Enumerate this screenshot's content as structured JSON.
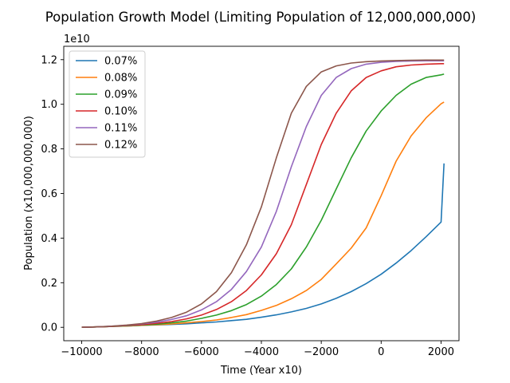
{
  "chart_data": {
    "type": "line",
    "title": "Population Growth Model (Limiting Population of 12,000,000,000)",
    "xlabel": "Time (Year x10)",
    "ylabel": "Population (x10,000,000,000)",
    "y_offset_label": "1e10",
    "xlim": [
      -10600,
      2600
    ],
    "ylim": [
      -0.06,
      1.26
    ],
    "x_ticks": [
      -10000,
      -8000,
      -6000,
      -4000,
      -2000,
      0,
      2000
    ],
    "x_tick_labels": [
      "−10000",
      "−8000",
      "−6000",
      "−4000",
      "−2000",
      "0",
      "2000"
    ],
    "y_ticks": [
      0.0,
      0.2,
      0.4,
      0.6,
      0.8,
      1.0,
      1.2
    ],
    "y_tick_labels": [
      "0.0",
      "0.2",
      "0.4",
      "0.6",
      "0.8",
      "1.0",
      "1.2"
    ],
    "grid": false,
    "legend_position": "top-left",
    "x": [
      -10000,
      -9500,
      -9000,
      -8500,
      -8000,
      -7500,
      -7000,
      -6500,
      -6000,
      -5500,
      -5000,
      -4500,
      -4000,
      -3500,
      -3000,
      -2500,
      -2000,
      -1500,
      -1000,
      -500,
      0,
      500,
      1000,
      1500,
      2000,
      2100
    ],
    "series": [
      {
        "name": "0.07%",
        "color": "#1f77b4",
        "values": [
          0.0,
          0.002,
          0.004,
          0.006,
          0.009,
          0.011,
          0.013,
          0.016,
          0.02,
          0.024,
          0.03,
          0.036,
          0.045,
          0.056,
          0.069,
          0.085,
          0.105,
          0.13,
          0.16,
          0.196,
          0.238,
          0.288,
          0.344,
          0.406,
          0.472,
          0.735
        ]
      },
      {
        "name": "0.08%",
        "color": "#ff7f0e",
        "values": [
          0.0,
          0.002,
          0.004,
          0.006,
          0.009,
          0.012,
          0.015,
          0.02,
          0.026,
          0.033,
          0.044,
          0.057,
          0.076,
          0.098,
          0.128,
          0.165,
          0.215,
          0.284,
          0.355,
          0.446,
          0.59,
          0.745,
          0.858,
          0.939,
          1.002,
          1.01
        ]
      },
      {
        "name": "0.09%",
        "color": "#2ca02c",
        "values": [
          0.0,
          0.002,
          0.004,
          0.007,
          0.01,
          0.014,
          0.02,
          0.028,
          0.04,
          0.055,
          0.075,
          0.102,
          0.14,
          0.192,
          0.262,
          0.36,
          0.48,
          0.62,
          0.76,
          0.88,
          0.97,
          1.04,
          1.09,
          1.12,
          1.132,
          1.135
        ]
      },
      {
        "name": "0.10%",
        "color": "#d62728",
        "values": [
          0.0,
          0.002,
          0.004,
          0.008,
          0.012,
          0.018,
          0.026,
          0.038,
          0.055,
          0.08,
          0.115,
          0.165,
          0.235,
          0.33,
          0.46,
          0.64,
          0.82,
          0.96,
          1.06,
          1.12,
          1.15,
          1.168,
          1.176,
          1.18,
          1.182,
          1.182
        ]
      },
      {
        "name": "0.11%",
        "color": "#9467bd",
        "values": [
          0.0,
          0.002,
          0.005,
          0.009,
          0.015,
          0.023,
          0.035,
          0.052,
          0.078,
          0.115,
          0.17,
          0.25,
          0.36,
          0.52,
          0.72,
          0.9,
          1.04,
          1.12,
          1.16,
          1.18,
          1.188,
          1.192,
          1.194,
          1.195,
          1.195,
          1.195
        ]
      },
      {
        "name": "0.12%",
        "color": "#8c564b",
        "values": [
          0.0,
          0.002,
          0.005,
          0.01,
          0.017,
          0.028,
          0.044,
          0.068,
          0.105,
          0.16,
          0.245,
          0.37,
          0.54,
          0.76,
          0.96,
          1.08,
          1.145,
          1.172,
          1.185,
          1.191,
          1.194,
          1.196,
          1.197,
          1.198,
          1.198,
          1.198
        ]
      }
    ]
  }
}
